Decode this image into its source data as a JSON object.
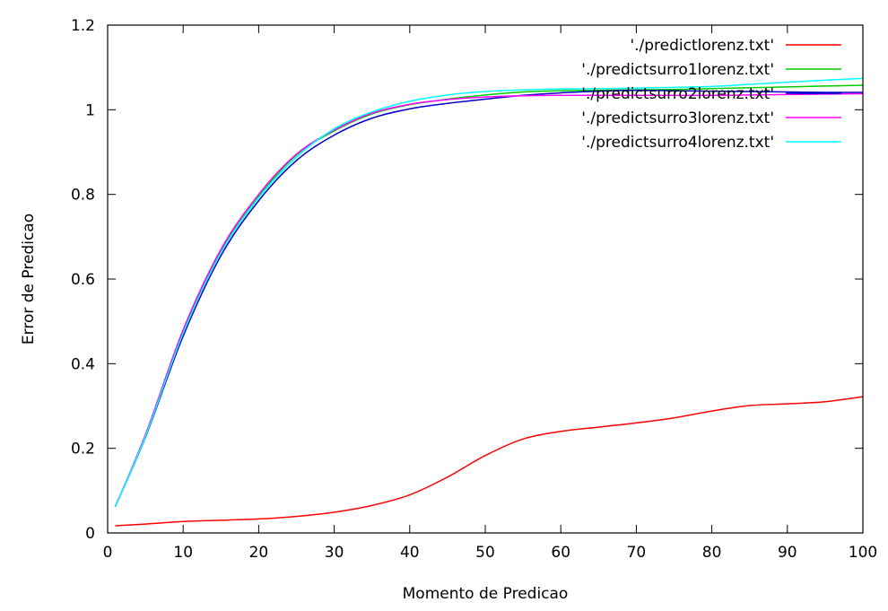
{
  "chart_data": {
    "type": "line",
    "title": "",
    "xlabel": "Momento de Predicao",
    "ylabel": "Error de Predicao",
    "xlim": [
      0,
      100
    ],
    "ylim": [
      0,
      1.2
    ],
    "x_ticks": [
      0,
      10,
      20,
      30,
      40,
      50,
      60,
      70,
      80,
      90,
      100
    ],
    "y_ticks": [
      0,
      0.2,
      0.4,
      0.6,
      0.8,
      1,
      1.2
    ],
    "x_tick_labels": [
      "0",
      "10",
      "20",
      "30",
      "40",
      "50",
      "60",
      "70",
      "80",
      "90",
      "100"
    ],
    "y_tick_labels": [
      "0",
      "0.2",
      "0.4",
      "0.6",
      "0.8",
      "1",
      "1.2"
    ],
    "grid": false,
    "legend_position": "top-right",
    "series": [
      {
        "name": "'./predictlorenz.txt'",
        "color": "#ff0000",
        "x": [
          1,
          5,
          10,
          15,
          20,
          25,
          30,
          35,
          40,
          45,
          50,
          55,
          60,
          65,
          70,
          75,
          80,
          85,
          90,
          95,
          100
        ],
        "y": [
          0.017,
          0.021,
          0.027,
          0.03,
          0.033,
          0.039,
          0.049,
          0.065,
          0.09,
          0.132,
          0.183,
          0.222,
          0.24,
          0.25,
          0.26,
          0.272,
          0.288,
          0.301,
          0.305,
          0.31,
          0.322
        ]
      },
      {
        "name": "'./predictsurro1lorenz.txt'",
        "color": "#00cc00",
        "x": [
          1,
          5,
          10,
          15,
          20,
          25,
          30,
          35,
          40,
          45,
          50,
          55,
          60,
          65,
          70,
          75,
          80,
          85,
          90,
          95,
          100
        ],
        "y": [
          0.062,
          0.23,
          0.475,
          0.665,
          0.795,
          0.893,
          0.95,
          0.99,
          1.012,
          1.025,
          1.035,
          1.042,
          1.045,
          1.046,
          1.047,
          1.048,
          1.05,
          1.052,
          1.054,
          1.056,
          1.058
        ]
      },
      {
        "name": "'./predictsurro2lorenz.txt'",
        "color": "#0000cc",
        "x": [
          1,
          5,
          10,
          15,
          20,
          25,
          30,
          35,
          40,
          45,
          50,
          55,
          60,
          65,
          70,
          75,
          80,
          85,
          90,
          95,
          100
        ],
        "y": [
          0.062,
          0.226,
          0.465,
          0.655,
          0.785,
          0.88,
          0.94,
          0.98,
          1.002,
          1.015,
          1.025,
          1.034,
          1.04,
          1.044,
          1.046,
          1.045,
          1.044,
          1.043,
          1.042,
          1.041,
          1.041
        ]
      },
      {
        "name": "'./predictsurro3lorenz.txt'",
        "color": "#ff00ff",
        "x": [
          1,
          5,
          10,
          15,
          20,
          25,
          30,
          35,
          40,
          45,
          50,
          55,
          60,
          65,
          70,
          75,
          80,
          85,
          90,
          95,
          100
        ],
        "y": [
          0.062,
          0.232,
          0.48,
          0.67,
          0.8,
          0.895,
          0.952,
          0.992,
          1.013,
          1.024,
          1.03,
          1.033,
          1.034,
          1.034,
          1.034,
          1.034,
          1.034,
          1.035,
          1.036,
          1.037,
          1.038
        ]
      },
      {
        "name": "'./predictsurro4lorenz.txt'",
        "color": "#00ffff",
        "x": [
          1,
          5,
          10,
          15,
          20,
          25,
          30,
          35,
          40,
          45,
          50,
          55,
          60,
          65,
          70,
          75,
          80,
          85,
          90,
          95,
          100
        ],
        "y": [
          0.062,
          0.228,
          0.472,
          0.662,
          0.792,
          0.888,
          0.955,
          0.995,
          1.02,
          1.035,
          1.043,
          1.047,
          1.049,
          1.05,
          1.051,
          1.053,
          1.055,
          1.06,
          1.065,
          1.07,
          1.074
        ]
      }
    ]
  }
}
